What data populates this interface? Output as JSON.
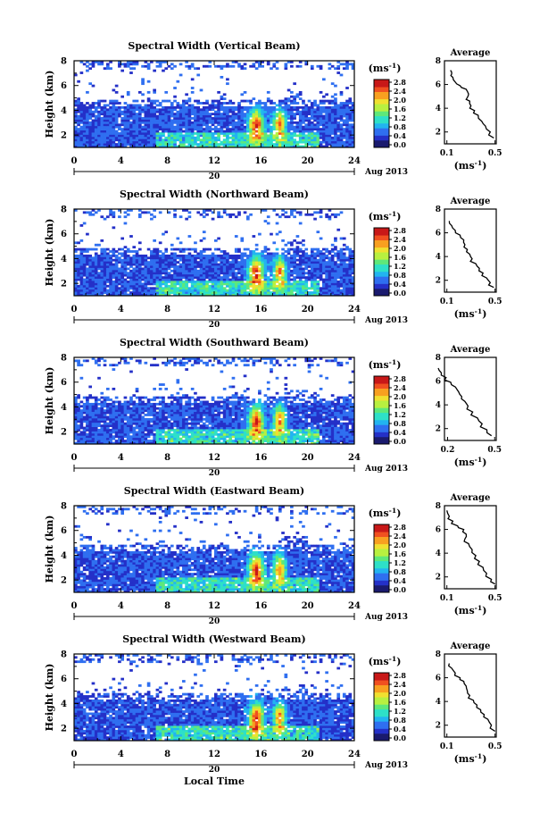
{
  "figure": {
    "xlabel_bottom": "Local Time",
    "date_label": "Aug 2013",
    "day_label": "20",
    "colorbar_unit": "(ms",
    "colorbar_unit_exp": "-1",
    "avg_unit": "(ms",
    "avg_unit_exp": "-1",
    "avg_title": "Average",
    "ylabel": "Height (km)",
    "colorbar_ticks": [
      "0.0",
      "0.4",
      "0.8",
      "1.2",
      "1.6",
      "2.0",
      "2.4",
      "2.8"
    ],
    "colorbar_colors": [
      "#1a1a6e",
      "#2430c8",
      "#2f6ff0",
      "#22b4f0",
      "#2ee0c8",
      "#5ee87a",
      "#b8f040",
      "#f0e030",
      "#f8a020",
      "#f05020",
      "#c81818"
    ]
  },
  "chart_data": [
    {
      "type": "heatmap",
      "title": "Spectral Width (Vertical Beam)",
      "xlabel": "Local Time",
      "ylabel": "Height (km)",
      "xlim": [
        0,
        24
      ],
      "ylim": [
        1,
        8
      ],
      "xticks": [
        0,
        4,
        8,
        12,
        16,
        20,
        24
      ],
      "yticks": [
        2,
        4,
        6,
        8
      ],
      "colorbar": {
        "label": "(ms-1)",
        "range": [
          0.0,
          2.8
        ]
      },
      "average_profile": {
        "title": "Average",
        "xlabel": "(ms-1)",
        "xticks": [
          0.1,
          0.5
        ],
        "yticks": [
          2,
          4,
          6,
          8
        ],
        "x": [
          0.13,
          0.14,
          0.15,
          0.17,
          0.21,
          0.26,
          0.28,
          0.27,
          0.29,
          0.3,
          0.33,
          0.36,
          0.39,
          0.42,
          0.46,
          0.49
        ],
        "y": [
          7.2,
          6.9,
          6.6,
          6.2,
          5.9,
          5.6,
          5.2,
          4.9,
          4.6,
          4.2,
          3.8,
          3.4,
          2.9,
          2.5,
          2.0,
          1.5
        ]
      }
    },
    {
      "type": "heatmap",
      "title": "Spectral Width (Northward Beam)",
      "xlabel": "Local Time",
      "ylabel": "Height (km)",
      "xlim": [
        0,
        24
      ],
      "ylim": [
        1,
        8
      ],
      "xticks": [
        0,
        4,
        8,
        12,
        16,
        20,
        24
      ],
      "yticks": [
        2,
        4,
        6,
        8
      ],
      "colorbar": {
        "label": "(ms-1)",
        "range": [
          0.0,
          2.8
        ]
      },
      "average_profile": {
        "title": "Average",
        "xlabel": "(ms-1)",
        "xticks": [
          0.1,
          0.5
        ],
        "yticks": [
          2,
          4,
          6,
          8
        ],
        "x": [
          0.12,
          0.14,
          0.17,
          0.21,
          0.24,
          0.25,
          0.27,
          0.29,
          0.31,
          0.34,
          0.37,
          0.4,
          0.43,
          0.46,
          0.49
        ],
        "y": [
          7.0,
          6.6,
          6.2,
          5.8,
          5.4,
          5.0,
          4.6,
          4.2,
          3.8,
          3.4,
          3.0,
          2.6,
          2.2,
          1.8,
          1.4
        ]
      }
    },
    {
      "type": "heatmap",
      "title": "Spectral Width (Southward Beam)",
      "xlabel": "Local Time",
      "ylabel": "Height (km)",
      "xlim": [
        0,
        24
      ],
      "ylim": [
        1,
        8
      ],
      "xticks": [
        0,
        4,
        8,
        12,
        16,
        20,
        24
      ],
      "yticks": [
        2,
        4,
        6,
        8
      ],
      "colorbar": {
        "label": "(ms-1)",
        "range": [
          0.0,
          2.8
        ]
      },
      "average_profile": {
        "title": "Average",
        "xlabel": "(ms-1)",
        "xticks": [
          0.2,
          0.5
        ],
        "yticks": [
          2,
          4,
          6,
          8
        ],
        "x": [
          0.14,
          0.16,
          0.19,
          0.22,
          0.25,
          0.27,
          0.29,
          0.31,
          0.33,
          0.36,
          0.39,
          0.42,
          0.45,
          0.48
        ],
        "y": [
          7.1,
          6.7,
          6.3,
          5.9,
          5.5,
          5.1,
          4.7,
          4.3,
          3.9,
          3.4,
          2.9,
          2.4,
          1.9,
          1.4
        ]
      }
    },
    {
      "type": "heatmap",
      "title": "Spectral Width (Eastward Beam)",
      "xlabel": "Local Time",
      "ylabel": "Height (km)",
      "xlim": [
        0,
        24
      ],
      "ylim": [
        1,
        8
      ],
      "xticks": [
        0,
        4,
        8,
        12,
        16,
        20,
        24
      ],
      "yticks": [
        2,
        4,
        6,
        8
      ],
      "colorbar": {
        "label": "(ms-1)",
        "range": [
          0.0,
          2.8
        ]
      },
      "average_profile": {
        "title": "Average",
        "xlabel": "(ms-1)",
        "xticks": [
          0.1,
          0.5
        ],
        "yticks": [
          2,
          4,
          6,
          8
        ],
        "x": [
          0.1,
          0.12,
          0.15,
          0.19,
          0.24,
          0.26,
          0.25,
          0.28,
          0.31,
          0.34,
          0.37,
          0.4,
          0.43,
          0.47,
          0.5
        ],
        "y": [
          7.6,
          7.1,
          6.7,
          6.3,
          6.0,
          5.6,
          5.2,
          4.8,
          4.3,
          3.8,
          3.3,
          2.8,
          2.3,
          1.8,
          1.4
        ]
      }
    },
    {
      "type": "heatmap",
      "title": "Spectral Width (Westward Beam)",
      "xlabel": "Local Time",
      "ylabel": "Height (km)",
      "xlim": [
        0,
        24
      ],
      "ylim": [
        1,
        8
      ],
      "xticks": [
        0,
        4,
        8,
        12,
        16,
        20,
        24
      ],
      "yticks": [
        2,
        4,
        6,
        8
      ],
      "colorbar": {
        "label": "(ms-1)",
        "range": [
          0.0,
          2.8
        ]
      },
      "average_profile": {
        "title": "Average",
        "xlabel": "(ms-1)",
        "xticks": [
          0.1,
          0.5
        ],
        "yticks": [
          2,
          4,
          6,
          8
        ],
        "x": [
          0.12,
          0.14,
          0.17,
          0.21,
          0.24,
          0.26,
          0.27,
          0.29,
          0.32,
          0.35,
          0.38,
          0.41,
          0.44,
          0.47,
          0.5
        ],
        "y": [
          7.2,
          6.8,
          6.4,
          6.0,
          5.7,
          5.3,
          4.9,
          4.5,
          4.1,
          3.7,
          3.3,
          2.9,
          2.5,
          2.0,
          1.5
        ]
      }
    }
  ]
}
